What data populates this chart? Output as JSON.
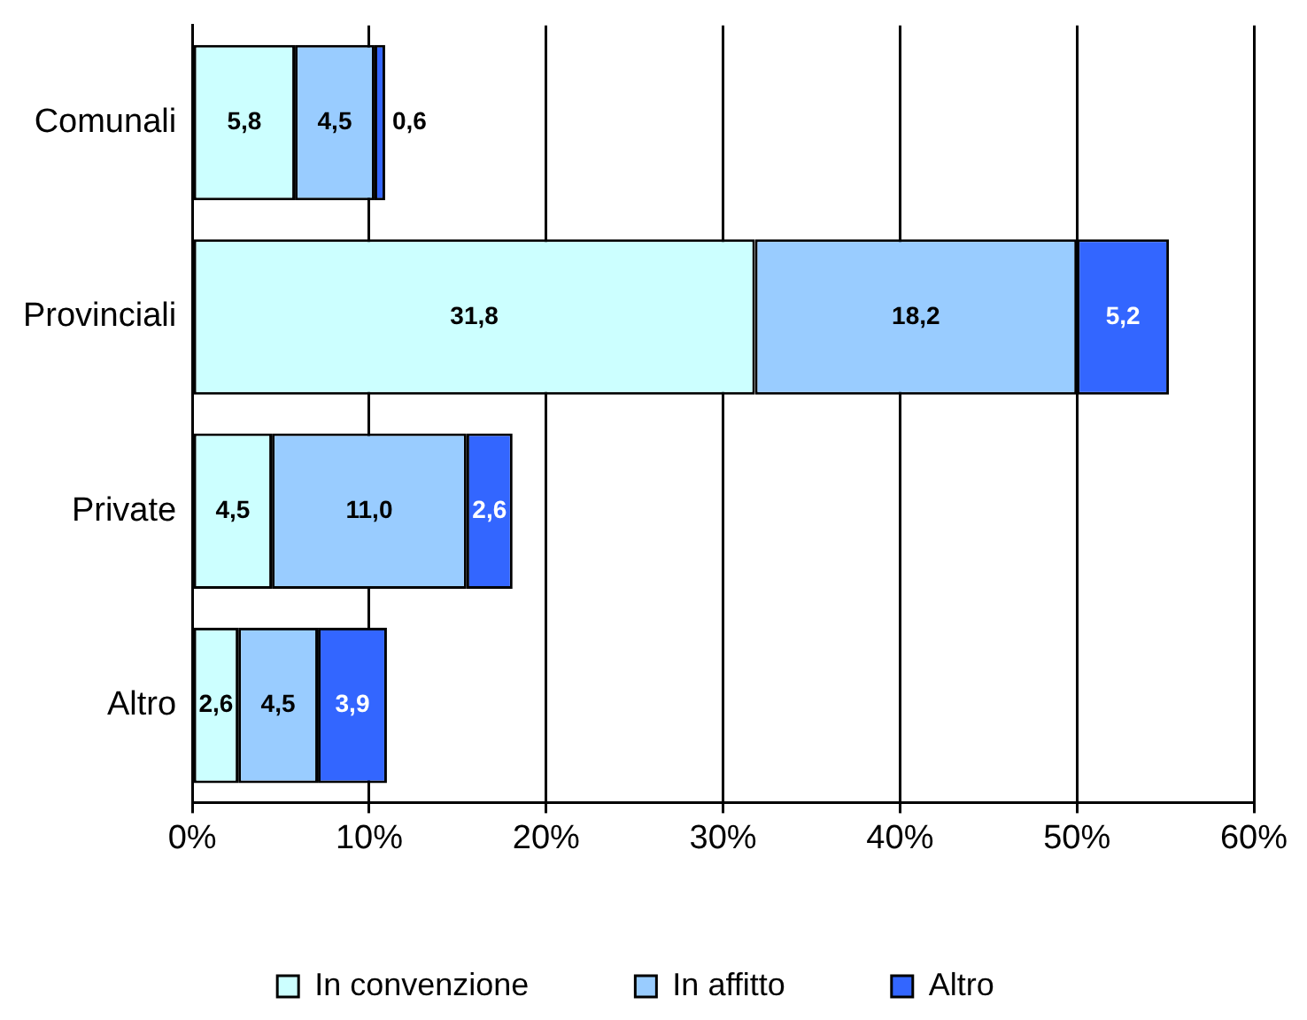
{
  "chart_data": {
    "type": "bar",
    "orientation": "horizontal",
    "stacked": true,
    "categories": [
      "Comunali",
      "Provinciali",
      "Private",
      "Altro"
    ],
    "series": [
      {
        "name": "In convenzione",
        "color": "#ccffff",
        "values": [
          5.8,
          31.8,
          4.5,
          2.6
        ],
        "value_labels": [
          "5,8",
          "31,8",
          "4,5",
          "2,6"
        ]
      },
      {
        "name": "In affitto",
        "color": "#99ccff",
        "values": [
          4.5,
          18.2,
          11.0,
          4.5
        ],
        "value_labels": [
          "4,5",
          "18,2",
          "11,0",
          "4,5"
        ]
      },
      {
        "name": "Altro",
        "color": "#3366ff",
        "values": [
          0.6,
          5.2,
          2.6,
          3.9
        ],
        "value_labels": [
          "0,6",
          "5,2",
          "2,6",
          "3,9"
        ]
      }
    ],
    "xlim": [
      0,
      60
    ],
    "xticks": [
      {
        "value": 0,
        "label": "0%"
      },
      {
        "value": 10,
        "label": "10%"
      },
      {
        "value": 20,
        "label": "20%"
      },
      {
        "value": 30,
        "label": "30%"
      },
      {
        "value": 40,
        "label": "40%"
      },
      {
        "value": 50,
        "label": "50%"
      },
      {
        "value": 60,
        "label": "60%"
      }
    ],
    "grid": "x",
    "legend": "bottom"
  }
}
